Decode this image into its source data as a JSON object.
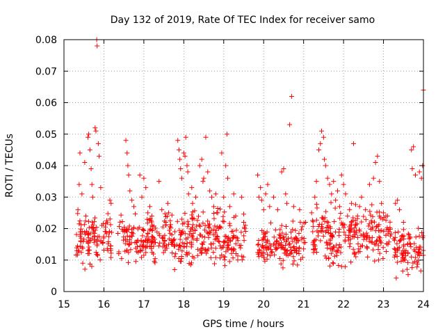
{
  "chart_data": {
    "type": "scatter",
    "title": "Day 132 of 2019, Rate Of TEC Index for receiver samo",
    "xlabel": "GPS time / hours",
    "ylabel": "ROTI / TECUs",
    "xlim": [
      15,
      24
    ],
    "ylim": [
      0,
      0.08
    ],
    "x_ticks": [
      15,
      16,
      17,
      18,
      19,
      20,
      21,
      22,
      23,
      24
    ],
    "y_ticks": [
      0,
      0.01,
      0.02,
      0.03,
      0.04,
      0.05,
      0.06,
      0.07,
      0.08
    ],
    "x_tick_labels": [
      "15",
      "16",
      "17",
      "18",
      "19",
      "20",
      "21",
      "22",
      "23",
      "24"
    ],
    "y_tick_labels": [
      "0",
      "0.01",
      "0.02",
      "0.03",
      "0.04",
      "0.05",
      "0.06",
      "0.07",
      "0.08"
    ],
    "grid": true,
    "marker": "+",
    "color": "#ff0000",
    "series": [
      {
        "name": "ROTI",
        "points": [
          [
            15.32,
            0.013
          ],
          [
            15.35,
            0.026
          ],
          [
            15.38,
            0.034
          ],
          [
            15.4,
            0.044
          ],
          [
            15.42,
            0.016
          ],
          [
            15.45,
            0.031
          ],
          [
            15.47,
            0.009
          ],
          [
            15.52,
            0.041
          ],
          [
            15.55,
            0.024
          ],
          [
            15.6,
            0.049
          ],
          [
            15.62,
            0.05
          ],
          [
            15.65,
            0.045
          ],
          [
            15.68,
            0.039
          ],
          [
            15.7,
            0.034
          ],
          [
            15.72,
            0.03
          ],
          [
            15.78,
            0.052
          ],
          [
            15.8,
            0.051
          ],
          [
            15.82,
            0.08
          ],
          [
            15.83,
            0.078
          ],
          [
            15.86,
            0.047
          ],
          [
            15.88,
            0.043
          ],
          [
            15.92,
            0.033
          ],
          [
            15.95,
            0.021
          ],
          [
            16.05,
            0.019
          ],
          [
            16.1,
            0.013
          ],
          [
            16.15,
            0.029
          ],
          [
            16.18,
            0.028
          ],
          [
            16.55,
            0.048
          ],
          [
            16.58,
            0.044
          ],
          [
            16.6,
            0.04
          ],
          [
            16.62,
            0.037
          ],
          [
            16.65,
            0.032
          ],
          [
            16.7,
            0.029
          ],
          [
            16.75,
            0.027
          ],
          [
            16.9,
            0.037
          ],
          [
            16.95,
            0.03
          ],
          [
            17.0,
            0.036
          ],
          [
            17.05,
            0.033
          ],
          [
            17.1,
            0.025
          ],
          [
            17.15,
            0.027
          ],
          [
            17.2,
            0.024
          ],
          [
            17.38,
            0.035
          ],
          [
            17.45,
            0.026
          ],
          [
            17.55,
            0.022
          ],
          [
            17.6,
            0.028
          ],
          [
            17.62,
            0.025
          ],
          [
            17.7,
            0.018
          ],
          [
            17.85,
            0.048
          ],
          [
            17.88,
            0.045
          ],
          [
            17.9,
            0.042
          ],
          [
            17.92,
            0.039
          ],
          [
            17.95,
            0.036
          ],
          [
            18.0,
            0.044
          ],
          [
            18.03,
            0.043
          ],
          [
            18.05,
            0.049
          ],
          [
            18.08,
            0.04
          ],
          [
            18.1,
            0.038
          ],
          [
            18.12,
            0.031
          ],
          [
            18.2,
            0.033
          ],
          [
            18.22,
            0.028
          ],
          [
            18.3,
            0.03
          ],
          [
            18.4,
            0.04
          ],
          [
            18.45,
            0.042
          ],
          [
            18.48,
            0.035
          ],
          [
            18.5,
            0.036
          ],
          [
            18.55,
            0.049
          ],
          [
            18.6,
            0.038
          ],
          [
            18.65,
            0.032
          ],
          [
            18.7,
            0.03
          ],
          [
            18.75,
            0.027
          ],
          [
            18.8,
            0.031
          ],
          [
            18.85,
            0.025
          ],
          [
            18.95,
            0.044
          ],
          [
            19.0,
            0.03
          ],
          [
            19.05,
            0.04
          ],
          [
            19.08,
            0.05
          ],
          [
            19.1,
            0.036
          ],
          [
            19.15,
            0.027
          ],
          [
            19.25,
            0.031
          ],
          [
            19.3,
            0.024
          ],
          [
            19.45,
            0.03
          ],
          [
            19.5,
            0.022
          ],
          [
            19.85,
            0.037
          ],
          [
            19.88,
            0.03
          ],
          [
            19.92,
            0.033
          ],
          [
            19.95,
            0.029
          ],
          [
            20.0,
            0.026
          ],
          [
            20.05,
            0.031
          ],
          [
            20.1,
            0.034
          ],
          [
            20.15,
            0.027
          ],
          [
            20.25,
            0.03
          ],
          [
            20.35,
            0.026
          ],
          [
            20.45,
            0.038
          ],
          [
            20.5,
            0.039
          ],
          [
            20.55,
            0.031
          ],
          [
            20.58,
            0.028
          ],
          [
            20.65,
            0.053
          ],
          [
            20.7,
            0.062
          ],
          [
            20.75,
            0.027
          ],
          [
            20.9,
            0.026
          ],
          [
            21.05,
            0.022
          ],
          [
            21.2,
            0.025
          ],
          [
            21.28,
            0.03
          ],
          [
            21.32,
            0.035
          ],
          [
            21.38,
            0.045
          ],
          [
            21.42,
            0.047
          ],
          [
            21.45,
            0.051
          ],
          [
            21.5,
            0.049
          ],
          [
            21.52,
            0.042
          ],
          [
            21.55,
            0.04
          ],
          [
            21.6,
            0.036
          ],
          [
            21.65,
            0.034
          ],
          [
            21.7,
            0.031
          ],
          [
            21.75,
            0.035
          ],
          [
            21.8,
            0.029
          ],
          [
            21.85,
            0.032
          ],
          [
            21.9,
            0.027
          ],
          [
            21.95,
            0.037
          ],
          [
            22.0,
            0.034
          ],
          [
            22.05,
            0.031
          ],
          [
            22.1,
            0.024
          ],
          [
            22.15,
            0.026
          ],
          [
            22.2,
            0.028
          ],
          [
            22.25,
            0.047
          ],
          [
            22.35,
            0.024
          ],
          [
            22.4,
            0.027
          ],
          [
            22.45,
            0.03
          ],
          [
            22.55,
            0.026
          ],
          [
            22.65,
            0.034
          ],
          [
            22.75,
            0.036
          ],
          [
            22.8,
            0.041
          ],
          [
            22.85,
            0.043
          ],
          [
            22.9,
            0.035
          ],
          [
            22.95,
            0.028
          ],
          [
            23.0,
            0.025
          ],
          [
            23.1,
            0.024
          ],
          [
            23.3,
            0.028
          ],
          [
            23.35,
            0.029
          ],
          [
            23.4,
            0.026
          ],
          [
            23.5,
            0.022
          ],
          [
            23.7,
            0.045
          ],
          [
            23.75,
            0.046
          ],
          [
            23.72,
            0.039
          ],
          [
            23.8,
            0.037
          ],
          [
            23.9,
            0.038
          ],
          [
            23.95,
            0.036
          ],
          [
            23.98,
            0.04
          ],
          [
            24.0,
            0.064
          ]
        ],
        "bands": [
          {
            "start": 15.3,
            "end": 16.2,
            "low": 0.005,
            "high": 0.024
          },
          {
            "start": 16.35,
            "end": 17.4,
            "low": 0.006,
            "high": 0.023
          },
          {
            "start": 17.45,
            "end": 19.55,
            "low": 0.005,
            "high": 0.025
          },
          {
            "start": 19.85,
            "end": 21.05,
            "low": 0.006,
            "high": 0.021
          },
          {
            "start": 21.2,
            "end": 23.2,
            "low": 0.005,
            "high": 0.026
          },
          {
            "start": 23.25,
            "end": 24.0,
            "low": 0.003,
            "high": 0.02
          }
        ],
        "band_density": 1100
      }
    ]
  }
}
